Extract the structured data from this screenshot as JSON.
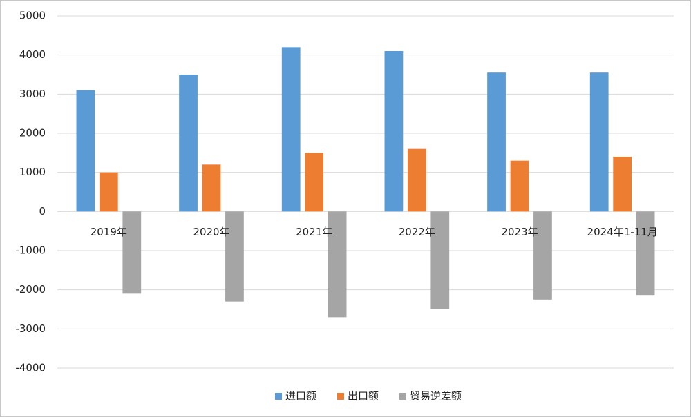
{
  "chart_data": {
    "type": "bar",
    "categories": [
      "2019年",
      "2020年",
      "2021年",
      "2022年",
      "2023年",
      "2024年1-11月"
    ],
    "series": [
      {
        "name": "进口额",
        "color": "#5b9bd5",
        "values": [
          3100,
          3500,
          4200,
          4100,
          3550,
          3550
        ]
      },
      {
        "name": "出口额",
        "color": "#ed7d31",
        "values": [
          1000,
          1200,
          1500,
          1600,
          1300,
          1400
        ]
      },
      {
        "name": "贸易逆差额",
        "color": "#a5a5a5",
        "values": [
          -2100,
          -2300,
          -2700,
          -2500,
          -2250,
          -2150
        ]
      }
    ],
    "ylim": [
      -4000,
      5000
    ],
    "yticks": [
      -4000,
      -3000,
      -2000,
      -1000,
      0,
      1000,
      2000,
      3000,
      4000,
      5000
    ],
    "grid": true,
    "legend": "bottom"
  }
}
